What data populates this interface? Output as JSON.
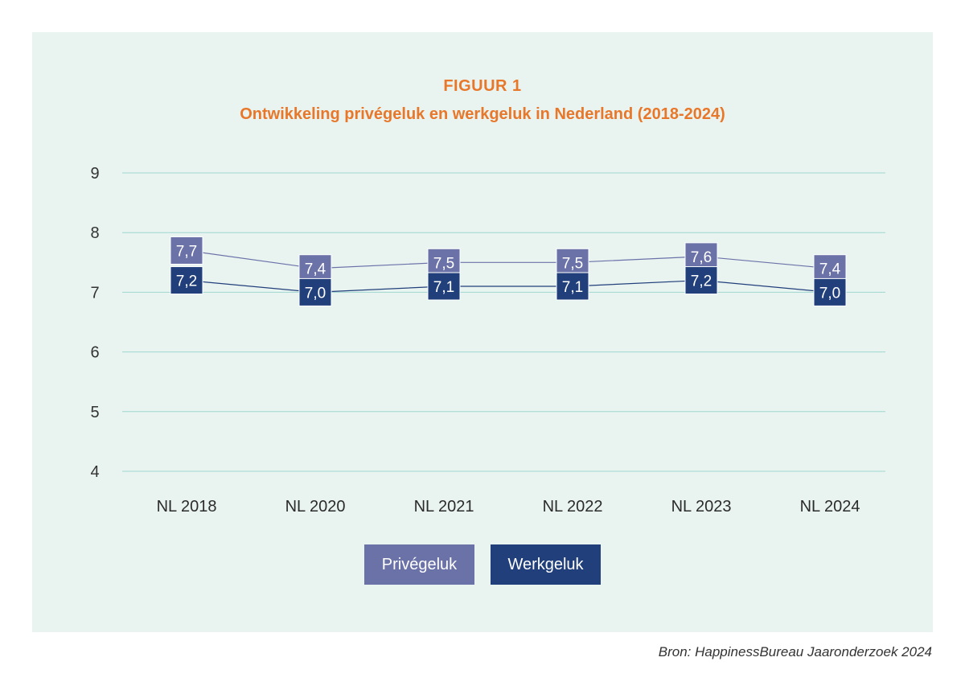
{
  "figure": {
    "number": "FIGUUR 1",
    "title": "Ontwikkeling privégeluk en werkgeluk in Nederland (2018-2024)"
  },
  "chart_data": {
    "type": "line",
    "categories": [
      "NL 2018",
      "NL 2020",
      "NL 2021",
      "NL 2022",
      "NL 2023",
      "NL 2024"
    ],
    "ylim": [
      4,
      9
    ],
    "yticks": [
      4,
      5,
      6,
      7,
      8,
      9
    ],
    "grid": true,
    "legend_position": "bottom-center",
    "series": [
      {
        "name": "Privégeluk",
        "color": "#6b72a8",
        "values": [
          7.7,
          7.4,
          7.5,
          7.5,
          7.6,
          7.4
        ],
        "labels": [
          "7,7",
          "7,4",
          "7,5",
          "7,5",
          "7,6",
          "7,4"
        ]
      },
      {
        "name": "Werkgeluk",
        "color": "#213f7a",
        "values": [
          7.2,
          7.0,
          7.1,
          7.1,
          7.2,
          7.0
        ],
        "labels": [
          "7,2",
          "7,0",
          "7,1",
          "7,1",
          "7,2",
          "7,0"
        ]
      }
    ]
  },
  "colors": {
    "background_panel": "#e9f4f1",
    "title_orange": "#e8772a",
    "gridline": "#9fd6cf"
  },
  "source": "Bron: HappinessBureau Jaaronderzoek 2024"
}
